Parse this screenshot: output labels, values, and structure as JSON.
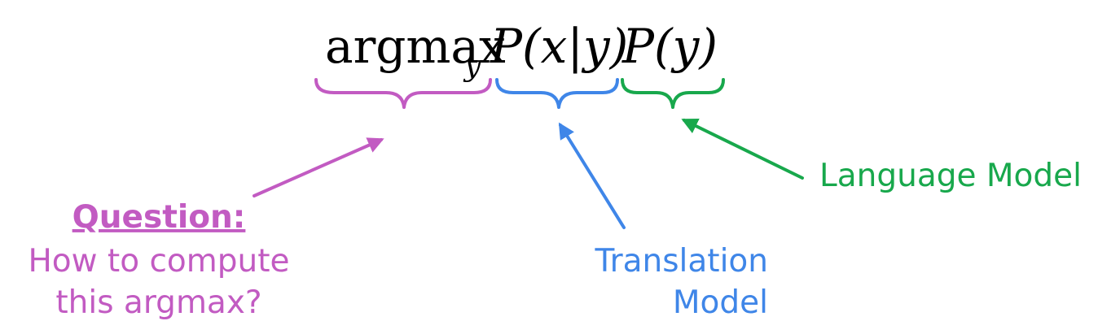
{
  "equation": {
    "argmax_word": "argmax",
    "argmax_subscript": "y",
    "translation_term": "P(x|y)",
    "language_term": "P(y)"
  },
  "labels": {
    "question_heading": "Question:",
    "question_line_1": "How to compute",
    "question_line_2": "this argmax?",
    "translation_line_1": "Translation",
    "translation_line_2": "Model",
    "language_model": "Language Model"
  },
  "colors": {
    "argmax": "#c25bc2",
    "translation": "#3f86e8",
    "language": "#18a84c",
    "text": "#000000"
  }
}
